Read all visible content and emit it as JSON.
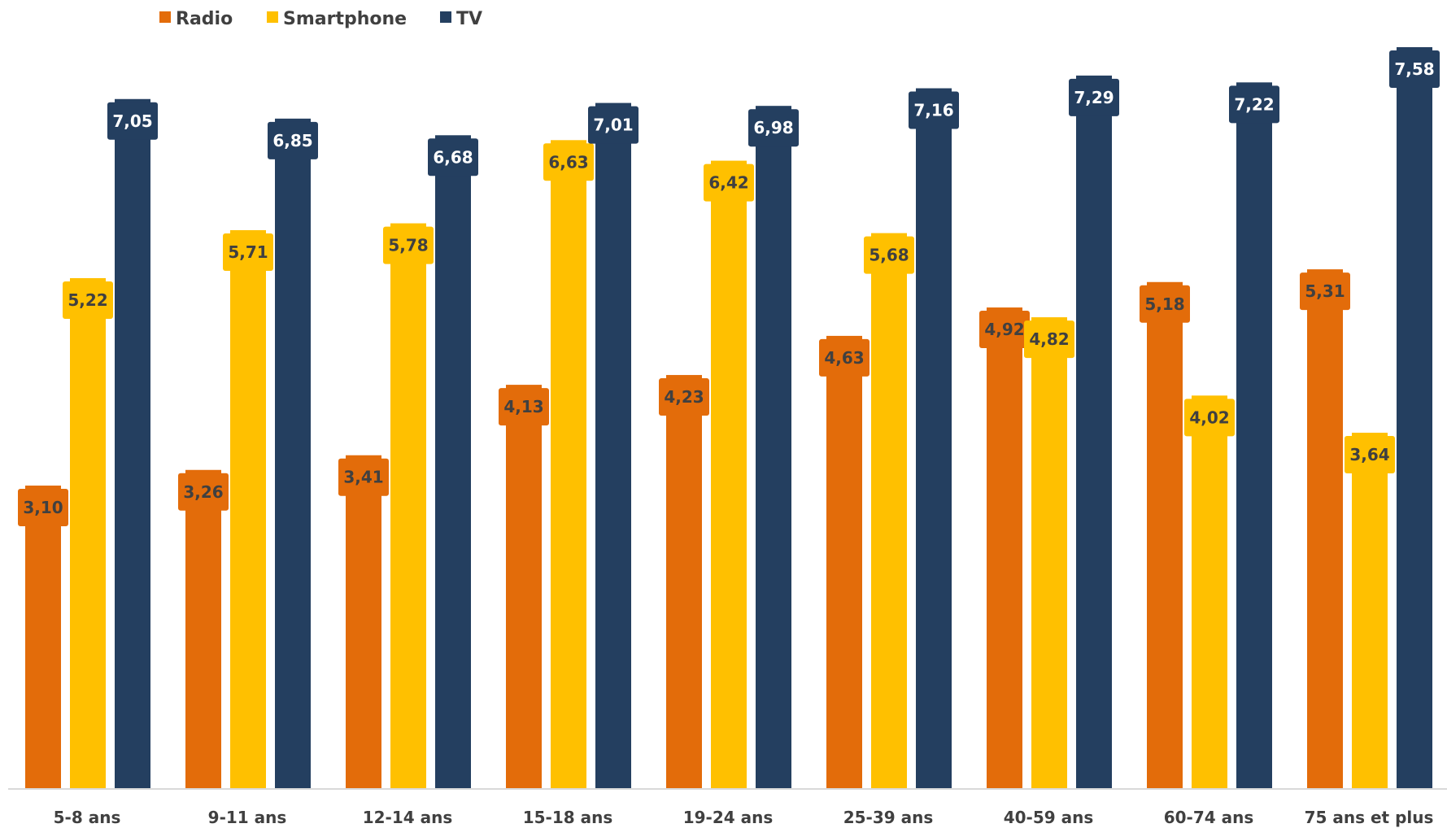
{
  "chart_data": {
    "type": "bar",
    "title": "",
    "xlabel": "",
    "ylabel": "",
    "ylim": [
      0,
      7.58
    ],
    "grid": false,
    "legend": "top-left",
    "decimal_separator": ",",
    "categories": [
      "5-8 ans",
      "9-11 ans",
      "12-14 ans",
      "15-18 ans",
      "19-24 ans",
      "25-39 ans",
      "40-59 ans",
      "60-74 ans",
      "75 ans et plus"
    ],
    "series": [
      {
        "name": "Radio",
        "color": "#E36C0A",
        "label_text_color": "#404040",
        "values": [
          3.1,
          3.26,
          3.41,
          4.13,
          4.23,
          4.63,
          4.92,
          5.18,
          5.31
        ]
      },
      {
        "name": "Smartphone",
        "color": "#FFC000",
        "label_text_color": "#404040",
        "values": [
          5.22,
          5.71,
          5.78,
          6.63,
          6.42,
          5.68,
          4.82,
          4.02,
          3.64
        ]
      },
      {
        "name": "TV",
        "color": "#243F60",
        "label_text_color": "#FFFFFF",
        "values": [
          7.05,
          6.85,
          6.68,
          7.01,
          6.98,
          7.16,
          7.29,
          7.22,
          7.58
        ]
      }
    ],
    "axis_color": "#D9D9D9"
  }
}
